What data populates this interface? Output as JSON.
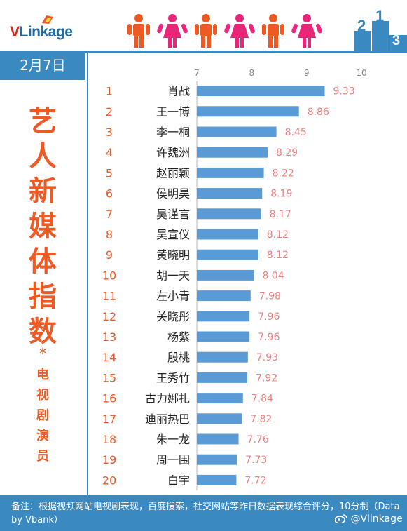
{
  "header": {
    "logo_v": "V",
    "logo_rest": "Linkage",
    "podium_digits": [
      "2",
      "1",
      "3"
    ]
  },
  "date": "2月7日",
  "title_chars": [
    "艺",
    "人",
    "新",
    "媒",
    "体",
    "指",
    "数"
  ],
  "title_star": "*",
  "subtitle_chars": [
    "电",
    "视",
    "剧",
    "演",
    "员"
  ],
  "colors": {
    "accent_blue": "#3a8ac1",
    "bar_blue": "#5b9bd5",
    "orange": "#ee5a24",
    "pink": "#e8277a",
    "value_pink": "#f08080"
  },
  "chart_data": {
    "type": "bar",
    "orientation": "horizontal",
    "xlim": [
      7,
      10
    ],
    "xticks": [
      7,
      8,
      9,
      10
    ],
    "categories": [
      "肖战",
      "王一博",
      "李一桐",
      "许魏洲",
      "赵丽颖",
      "侯明昊",
      "吴谨言",
      "吴宣仪",
      "黄晓明",
      "胡一天",
      "左小青",
      "关晓彤",
      "杨紫",
      "殷桃",
      "王秀竹",
      "古力娜扎",
      "迪丽热巴",
      "朱一龙",
      "周一围",
      "白宇"
    ],
    "ranks": [
      "1",
      "2",
      "3",
      "4",
      "5",
      "6",
      "7",
      "8",
      "9",
      "10",
      "11",
      "12",
      "13",
      "14",
      "15",
      "16",
      "17",
      "18",
      "19",
      "20"
    ],
    "values": [
      9.33,
      8.86,
      8.45,
      8.29,
      8.22,
      8.19,
      8.17,
      8.12,
      8.12,
      8.04,
      7.98,
      7.96,
      7.96,
      7.93,
      7.92,
      7.84,
      7.82,
      7.76,
      7.73,
      7.72
    ],
    "value_labels": [
      "9.33",
      "8.86",
      "8.45",
      "8.29",
      "8.22",
      "8.19",
      "8.17",
      "8.12",
      "8.12",
      "8.04",
      "7.98",
      "7.96",
      "7.96",
      "7.93",
      "7.92",
      "7.84",
      "7.82",
      "7.76",
      "7.73",
      "7.72"
    ]
  },
  "footer": {
    "note": "备注：根据视频网站电视剧表现，百度搜索，社交网站等昨日数据表现综合评分，10分制（Data by Vbank）",
    "weibo": "@Vlinkage"
  }
}
